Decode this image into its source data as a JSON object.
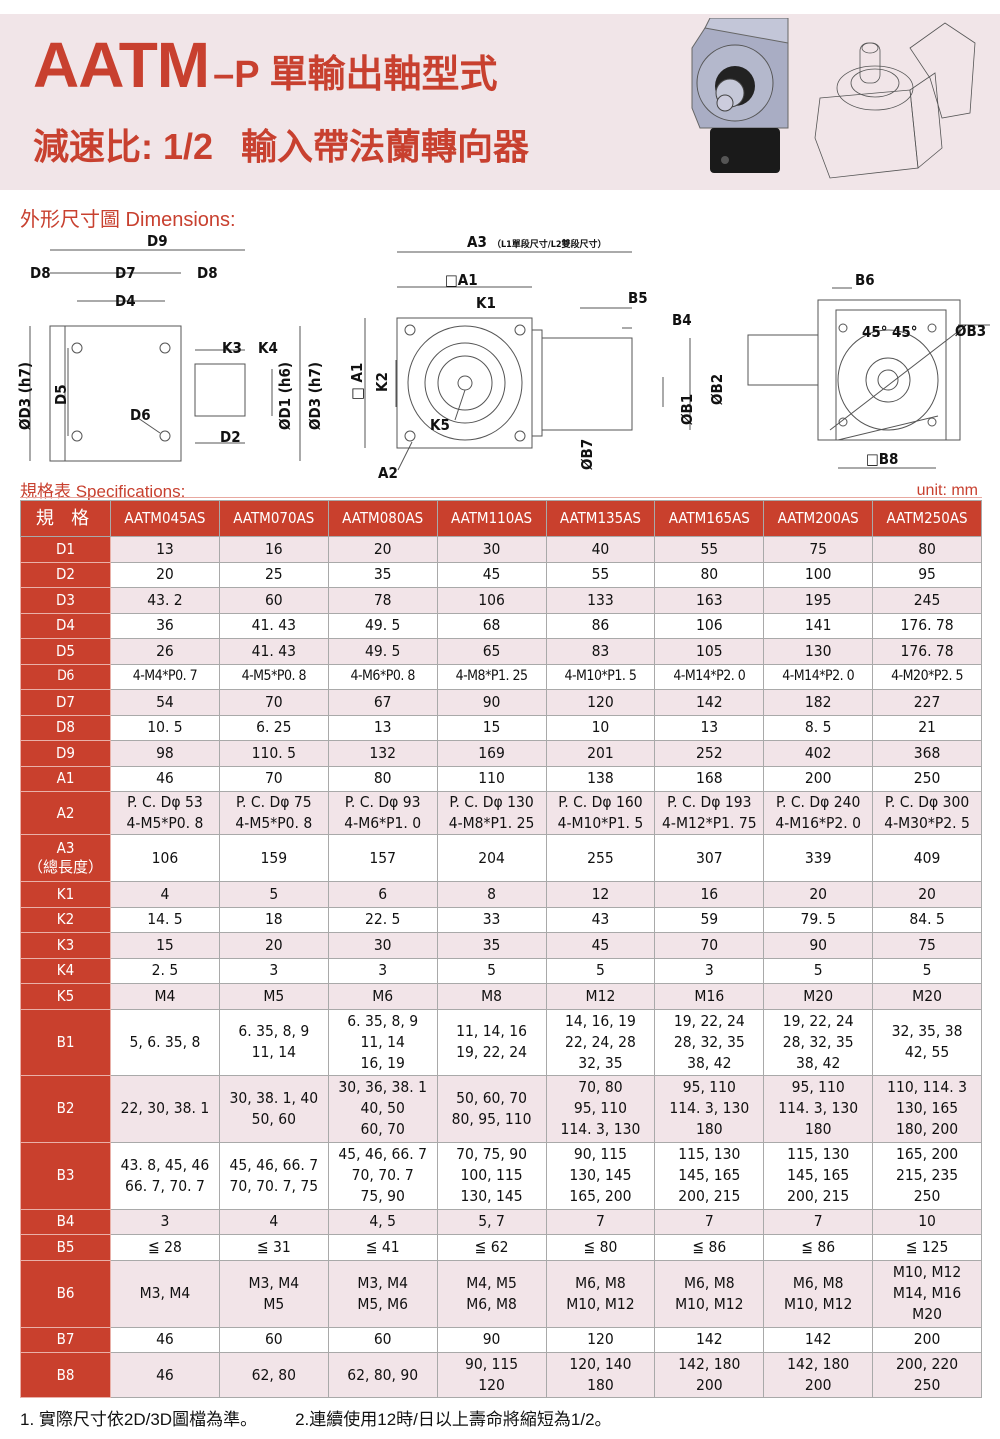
{
  "header": {
    "model": "AATM",
    "suffix": "–P 單輸出軸型式",
    "ratio": "減速比: 1/2",
    "desc": "輸入帶法蘭轉向器"
  },
  "sections": {
    "dimensions": "外形尺寸圖 Dimensions:",
    "specs": "規格表 Specifications:",
    "unit": "unit: mm"
  },
  "diagram_labels": {
    "D9": "D9",
    "D8": "D8",
    "D7": "D7",
    "D4": "D4",
    "K3": "K3",
    "K4": "K4",
    "D6": "D6",
    "D2": "D2",
    "D3": "ØD3 (h7)",
    "D5": "D5",
    "D1": "ØD1 (h6)",
    "A3": "A3",
    "A3_note": "（L1單段尺寸/L2雙段尺寸）",
    "A1": "□A1",
    "A1v": "□ A1",
    "K1": "K1",
    "K2": "K2",
    "K5": "K5",
    "A2": "A2",
    "B5": "B5",
    "B4": "B4",
    "B1": "ØB1",
    "B2": "ØB2",
    "B7": "ØB7",
    "B6": "B6",
    "B3": "ØB3",
    "B8": "□B8",
    "angle1": "45°",
    "angle2": "45°"
  },
  "table": {
    "corner": "規 格",
    "models": [
      "AATM045AS",
      "AATM070AS",
      "AATM080AS",
      "AATM110AS",
      "AATM135AS",
      "AATM165AS",
      "AATM200AS",
      "AATM250AS"
    ],
    "rows": [
      {
        "label": "D1",
        "values": [
          "13",
          "16",
          "20",
          "30",
          "40",
          "55",
          "75",
          "80"
        ]
      },
      {
        "label": "D2",
        "values": [
          "20",
          "25",
          "35",
          "45",
          "55",
          "80",
          "100",
          "95"
        ]
      },
      {
        "label": "D3",
        "values": [
          "43. 2",
          "60",
          "78",
          "106",
          "133",
          "163",
          "195",
          "245"
        ]
      },
      {
        "label": "D4",
        "values": [
          "36",
          "41. 43",
          "49. 5",
          "68",
          "86",
          "106",
          "141",
          "176. 78"
        ]
      },
      {
        "label": "D5",
        "values": [
          "26",
          "41. 43",
          "49. 5",
          "65",
          "83",
          "105",
          "130",
          "176. 78"
        ]
      },
      {
        "label": "D6",
        "values": [
          "4-M4*P0. 7",
          "4-M5*P0. 8",
          "4-M6*P0. 8",
          "4-M8*P1. 25",
          "4-M10*P1. 5",
          "4-M14*P2. 0",
          "4-M14*P2. 0",
          "4-M20*P2. 5"
        ]
      },
      {
        "label": "D7",
        "values": [
          "54",
          "70",
          "67",
          "90",
          "120",
          "142",
          "182",
          "227"
        ]
      },
      {
        "label": "D8",
        "values": [
          "10. 5",
          "6. 25",
          "13",
          "15",
          "10",
          "13",
          "8. 5",
          "21"
        ]
      },
      {
        "label": "D9",
        "values": [
          "98",
          "110. 5",
          "132",
          "169",
          "201",
          "252",
          "402",
          "368"
        ]
      },
      {
        "label": "A1",
        "values": [
          "46",
          "70",
          "80",
          "110",
          "138",
          "168",
          "200",
          "250"
        ]
      },
      {
        "label": "A2",
        "values": [
          "P. C. Dφ 53\n4-M5*P0. 8",
          "P. C. Dφ 75\n4-M5*P0. 8",
          "P. C. Dφ 93\n4-M6*P1. 0",
          "P. C. Dφ 130\n4-M8*P1. 25",
          "P. C. Dφ 160\n4-M10*P1. 5",
          "P. C. Dφ 193\n4-M12*P1. 75",
          "P. C. Dφ 240\n4-M16*P2. 0",
          "P. C. Dφ 300\n4-M30*P2. 5"
        ]
      },
      {
        "label": "A3\n（總長度）",
        "values": [
          "106",
          "159",
          "157",
          "204",
          "255",
          "307",
          "339",
          "409"
        ]
      },
      {
        "label": "K1",
        "values": [
          "4",
          "5",
          "6",
          "8",
          "12",
          "16",
          "20",
          "20"
        ]
      },
      {
        "label": "K2",
        "values": [
          "14. 5",
          "18",
          "22. 5",
          "33",
          "43",
          "59",
          "79. 5",
          "84. 5"
        ]
      },
      {
        "label": "K3",
        "values": [
          "15",
          "20",
          "30",
          "35",
          "45",
          "70",
          "90",
          "75"
        ]
      },
      {
        "label": "K4",
        "values": [
          "2. 5",
          "3",
          "3",
          "5",
          "5",
          "3",
          "5",
          "5"
        ]
      },
      {
        "label": "K5",
        "values": [
          "M4",
          "M5",
          "M6",
          "M8",
          "M12",
          "M16",
          "M20",
          "M20"
        ]
      },
      {
        "label": "B1",
        "values": [
          "5, 6. 35, 8",
          "6. 35, 8, 9\n11, 14",
          "6. 35, 8, 9\n11, 14\n16, 19",
          "11, 14, 16\n19, 22, 24",
          "14, 16, 19\n22, 24, 28\n32, 35",
          "19, 22, 24\n28, 32, 35\n38, 42",
          "19, 22, 24\n28, 32, 35\n38, 42",
          "32, 35, 38\n42, 55"
        ]
      },
      {
        "label": "B2",
        "values": [
          "22, 30, 38. 1",
          "30, 38. 1, 40\n50, 60",
          "30, 36, 38. 1\n40, 50\n60, 70",
          "50, 60, 70\n80, 95, 110",
          "70, 80\n95, 110\n114. 3, 130",
          "95, 110\n114. 3, 130\n180",
          "95, 110\n114. 3, 130\n180",
          "110, 114. 3\n130, 165\n180, 200"
        ]
      },
      {
        "label": "B3",
        "values": [
          "43. 8, 45, 46\n66. 7, 70. 7",
          "45, 46, 66. 7\n70, 70. 7, 75",
          "45, 46, 66. 7\n70, 70. 7\n75, 90",
          "70, 75, 90\n100, 115\n130, 145",
          "90, 115\n130, 145\n165, 200",
          "115, 130\n145, 165\n200, 215",
          "115, 130\n145, 165\n200, 215",
          "165, 200\n215, 235\n250"
        ]
      },
      {
        "label": "B4",
        "values": [
          "3",
          "4",
          "4, 5",
          "5, 7",
          "7",
          "7",
          "7",
          "10"
        ]
      },
      {
        "label": "B5",
        "values": [
          "≦ 28",
          "≦ 31",
          "≦ 41",
          "≦ 62",
          "≦ 80",
          "≦ 86",
          "≦ 86",
          "≦ 125"
        ]
      },
      {
        "label": "B6",
        "values": [
          "M3, M4",
          "M3, M4\nM5",
          "M3, M4\nM5, M6",
          "M4, M5\nM6, M8",
          "M6, M8\nM10, M12",
          "M6, M8\nM10, M12",
          "M6, M8\nM10, M12",
          "M10, M12\nM14, M16\nM20"
        ]
      },
      {
        "label": "B7",
        "values": [
          "46",
          "60",
          "60",
          "90",
          "120",
          "142",
          "142",
          "200"
        ]
      },
      {
        "label": "B8",
        "values": [
          "46",
          "62, 80",
          "62, 80, 90",
          "90, 115\n120",
          "120, 140\n180",
          "142, 180\n200",
          "142, 180\n200",
          "200, 220\n250"
        ]
      }
    ]
  },
  "notes": [
    "1. 實際尺寸依2D/3D圖檔為準。",
    "2.連續使用12時/日以上壽命將縮短為1/2。"
  ],
  "colors": {
    "brand_red": "#c9402d",
    "band_bg": "#f1e5e8",
    "row_pink": "#f2e4e8"
  }
}
